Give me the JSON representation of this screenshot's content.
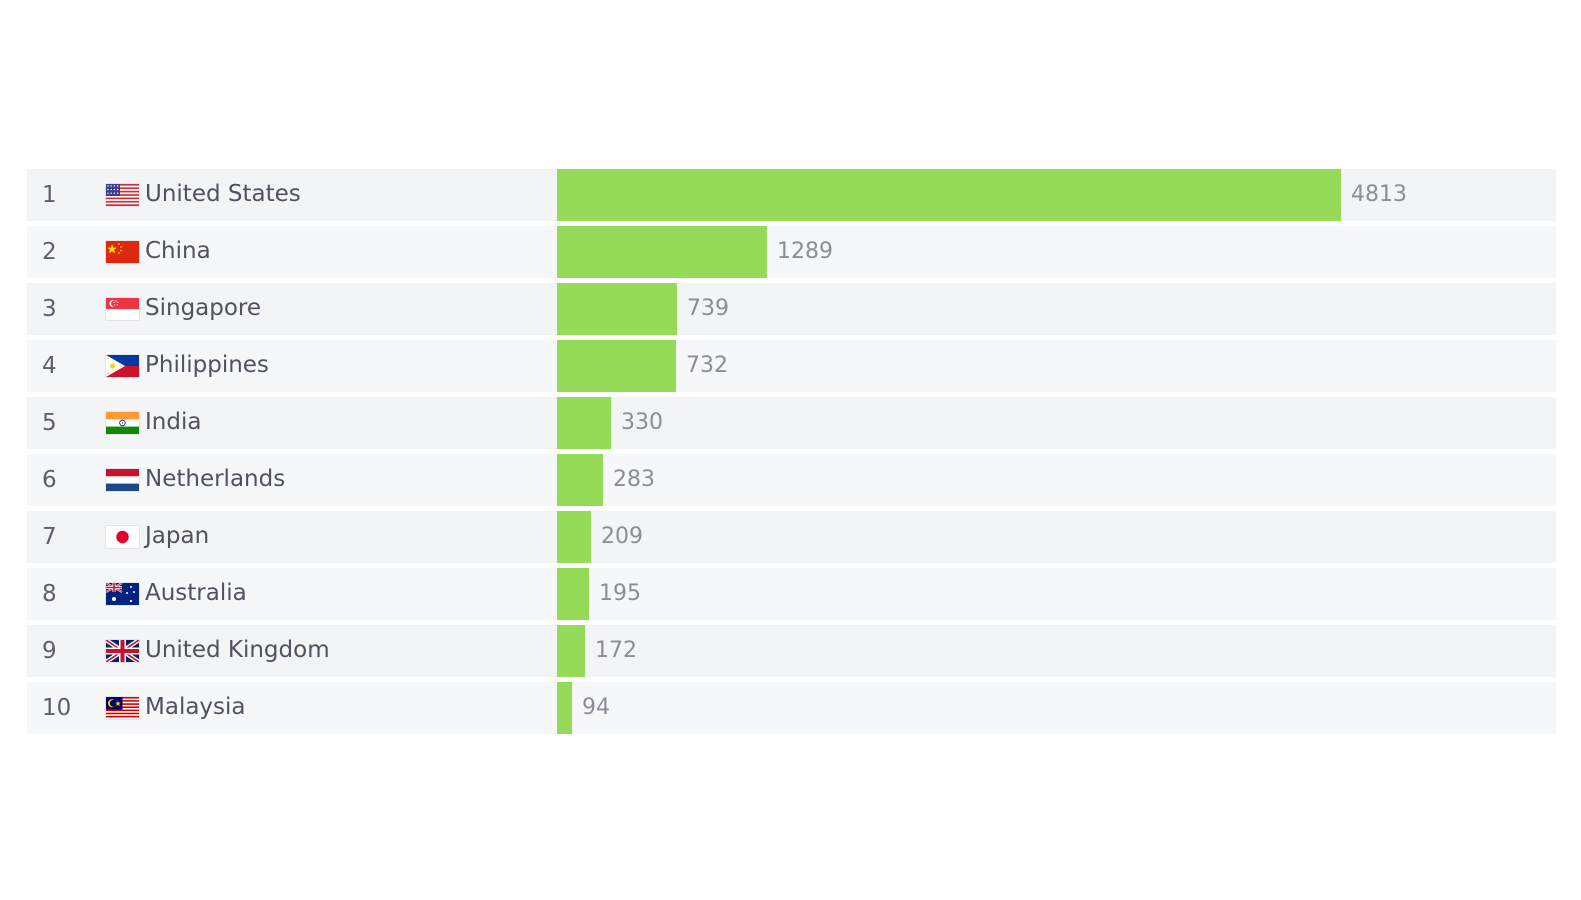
{
  "chart_data": {
    "type": "bar",
    "orientation": "horizontal",
    "color": "#96db58",
    "rows": [
      {
        "rank": "1",
        "country": "United States",
        "flag": "flag-us",
        "value": 4813
      },
      {
        "rank": "2",
        "country": "China",
        "flag": "flag-cn",
        "value": 1289
      },
      {
        "rank": "3",
        "country": "Singapore",
        "flag": "flag-sg",
        "value": 739
      },
      {
        "rank": "4",
        "country": "Philippines",
        "flag": "flag-ph",
        "value": 732
      },
      {
        "rank": "5",
        "country": "India",
        "flag": "flag-in",
        "value": 330
      },
      {
        "rank": "6",
        "country": "Netherlands",
        "flag": "flag-nl",
        "value": 283
      },
      {
        "rank": "7",
        "country": "Japan",
        "flag": "flag-jp",
        "value": 209
      },
      {
        "rank": "8",
        "country": "Australia",
        "flag": "flag-au",
        "value": 195
      },
      {
        "rank": "9",
        "country": "United Kingdom",
        "flag": "flag-gb",
        "value": 172
      },
      {
        "rank": "10",
        "country": "Malaysia",
        "flag": "flag-my",
        "value": 94
      }
    ],
    "xlim": [
      0,
      6135
    ]
  }
}
